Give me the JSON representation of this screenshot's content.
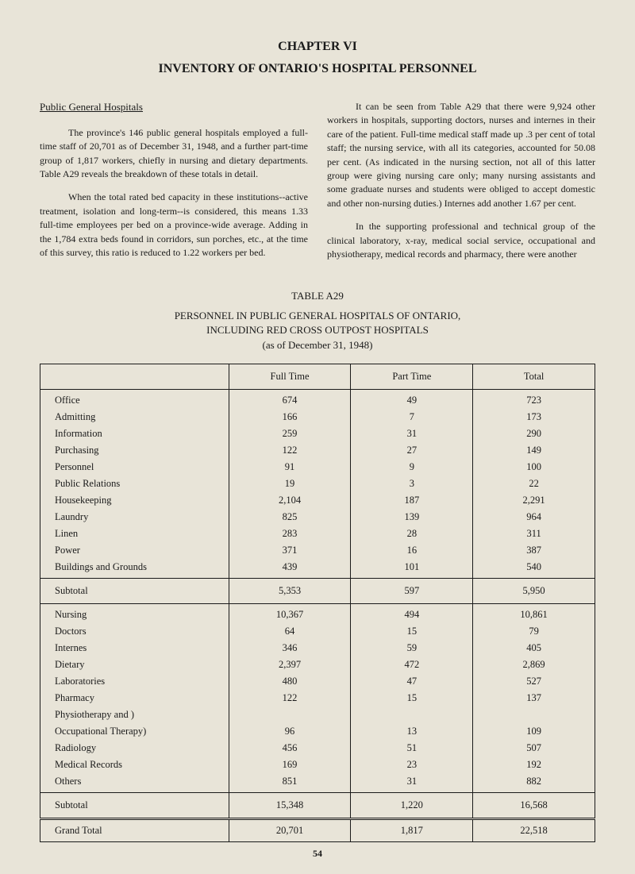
{
  "chapter_title": "CHAPTER VI",
  "main_title": "INVENTORY OF ONTARIO'S HOSPITAL PERSONNEL",
  "section_heading": "Public General Hospitals",
  "left_column": {
    "para1": "The province's 146 public general hospitals employed a full-time staff of 20,701 as of December 31, 1948, and a further part-time group of 1,817 workers, chiefly in nursing and dietary departments. Table A29 reveals the breakdown of these totals in detail.",
    "para2": "When the total rated bed capacity in these institutions--active treatment, isolation and long-term--is considered, this means 1.33 full-time employees per bed on a province-wide average. Adding in the 1,784 extra beds found in corridors, sun porches, etc., at the time of this survey, this ratio is reduced to 1.22 workers per bed."
  },
  "right_column": {
    "para1": "It can be seen from Table A29 that there were 9,924 other workers in hospitals, supporting doctors, nurses and internes in their care of the patient. Full-time medical staff made up .3 per cent of total staff; the nursing service, with all its categories, accounted for 50.08 per cent. (As indicated in the nursing section, not all of this latter group were giving nursing care only; many nursing assistants and some graduate nurses and students were obliged to accept domestic and other non-nursing duties.) Internes add another 1.67 per cent.",
    "para2": "In the supporting professional and technical group of the clinical laboratory, x-ray, medical social service, occupational and physiotherapy, medical records and pharmacy, there were another"
  },
  "table_title": "TABLE A29",
  "table_subtitle_line1": "PERSONNEL IN PUBLIC GENERAL HOSPITALS OF ONTARIO,",
  "table_subtitle_line2": "INCLUDING RED CROSS OUTPOST HOSPITALS",
  "table_subtitle_line3": "(as of December 31, 1948)",
  "table": {
    "columns": [
      "",
      "Full Time",
      "Part Time",
      "Total"
    ],
    "group1": [
      {
        "label": "Office",
        "full": "674",
        "part": "49",
        "total": "723"
      },
      {
        "label": "Admitting",
        "full": "166",
        "part": "7",
        "total": "173"
      },
      {
        "label": "Information",
        "full": "259",
        "part": "31",
        "total": "290"
      },
      {
        "label": "Purchasing",
        "full": "122",
        "part": "27",
        "total": "149"
      },
      {
        "label": "Personnel",
        "full": "91",
        "part": "9",
        "total": "100"
      },
      {
        "label": "Public Relations",
        "full": "19",
        "part": "3",
        "total": "22"
      },
      {
        "label": "Housekeeping",
        "full": "2,104",
        "part": "187",
        "total": "2,291"
      },
      {
        "label": "Laundry",
        "full": "825",
        "part": "139",
        "total": "964"
      },
      {
        "label": "Linen",
        "full": "283",
        "part": "28",
        "total": "311"
      },
      {
        "label": "Power",
        "full": "371",
        "part": "16",
        "total": "387"
      },
      {
        "label": "Buildings and Grounds",
        "full": "439",
        "part": "101",
        "total": "540"
      }
    ],
    "subtotal1": {
      "label": "Subtotal",
      "full": "5,353",
      "part": "597",
      "total": "5,950"
    },
    "group2": [
      {
        "label": "Nursing",
        "full": "10,367",
        "part": "494",
        "total": "10,861"
      },
      {
        "label": "Doctors",
        "full": "64",
        "part": "15",
        "total": "79"
      },
      {
        "label": "Internes",
        "full": "346",
        "part": "59",
        "total": "405"
      },
      {
        "label": "Dietary",
        "full": "2,397",
        "part": "472",
        "total": "2,869"
      },
      {
        "label": "Laboratories",
        "full": "480",
        "part": "47",
        "total": "527"
      },
      {
        "label": "Pharmacy",
        "full": "122",
        "part": "15",
        "total": "137"
      },
      {
        "label": "Physiotherapy and     )",
        "full": "",
        "part": "",
        "total": ""
      },
      {
        "label": "Occupational Therapy)",
        "full": "96",
        "part": "13",
        "total": "109"
      },
      {
        "label": "Radiology",
        "full": "456",
        "part": "51",
        "total": "507"
      },
      {
        "label": "Medical Records",
        "full": "169",
        "part": "23",
        "total": "192"
      },
      {
        "label": "Others",
        "full": "851",
        "part": "31",
        "total": "882"
      }
    ],
    "subtotal2": {
      "label": "Subtotal",
      "full": "15,348",
      "part": "1,220",
      "total": "16,568"
    },
    "grand": {
      "label": "Grand Total",
      "full": "20,701",
      "part": "1,817",
      "total": "22,518"
    }
  },
  "page_number": "54"
}
